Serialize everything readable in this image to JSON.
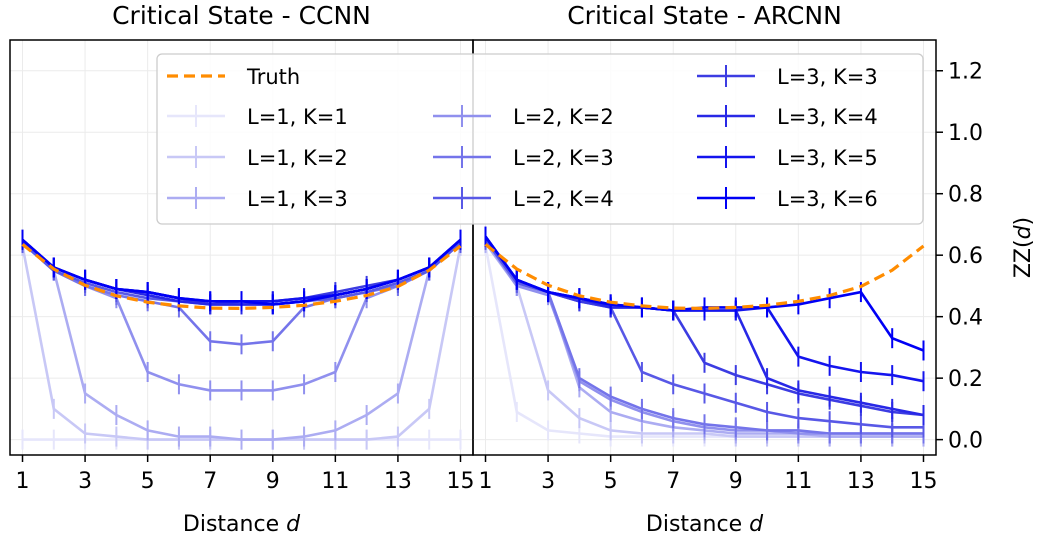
{
  "chart_data": [
    {
      "type": "line",
      "title": "Critical State - CCNN",
      "xlabel": "Distance d",
      "ylabel": "",
      "xlim": [
        0.6,
        15.4
      ],
      "ylim": [
        -0.05,
        1.3
      ],
      "x": [
        1,
        2,
        3,
        4,
        5,
        6,
        7,
        8,
        9,
        10,
        11,
        12,
        13,
        14,
        15
      ],
      "xticks": [
        "1",
        "3",
        "5",
        "7",
        "9",
        "11",
        "13",
        "15"
      ],
      "yticks": [],
      "grid": true,
      "legend_placement": "top",
      "series": [
        {
          "name": "Truth",
          "style": "dashed",
          "color": "#ff8c00",
          "values": [
            0.635,
            0.555,
            0.502,
            0.468,
            0.447,
            0.435,
            0.428,
            0.427,
            0.43,
            0.437,
            0.45,
            0.469,
            0.498,
            0.551,
            0.63
          ]
        },
        {
          "name": "L=1, K=1",
          "color": "#e6e6fb",
          "values": [
            0.0,
            0.0,
            0.0,
            0.0,
            0.0,
            0.0,
            0.0,
            0.0,
            0.0,
            0.0,
            0.0,
            0.0,
            0.0,
            0.0,
            0.0
          ]
        },
        {
          "name": "L=1, K=2",
          "color": "#c8c8f6",
          "values": [
            0.63,
            0.1,
            0.02,
            0.01,
            0.0,
            0.0,
            0.0,
            0.0,
            0.0,
            0.0,
            0.0,
            0.0,
            0.01,
            0.1,
            0.63
          ]
        },
        {
          "name": "L=1, K=3",
          "color": "#acacf2",
          "values": [
            0.64,
            0.55,
            0.15,
            0.08,
            0.03,
            0.01,
            0.01,
            0.0,
            0.0,
            0.01,
            0.03,
            0.08,
            0.15,
            0.55,
            0.64
          ]
        },
        {
          "name": "L=2, K=2",
          "color": "#9090ee",
          "values": [
            0.64,
            0.55,
            0.5,
            0.46,
            0.22,
            0.18,
            0.16,
            0.16,
            0.16,
            0.18,
            0.22,
            0.46,
            0.5,
            0.55,
            0.64
          ]
        },
        {
          "name": "L=2, K=3",
          "color": "#7474ea",
          "values": [
            0.64,
            0.55,
            0.5,
            0.47,
            0.45,
            0.43,
            0.32,
            0.31,
            0.32,
            0.43,
            0.46,
            0.48,
            0.5,
            0.55,
            0.64
          ]
        },
        {
          "name": "L=2, K=4",
          "color": "#5858e6",
          "values": [
            0.64,
            0.55,
            0.51,
            0.48,
            0.46,
            0.45,
            0.44,
            0.44,
            0.44,
            0.45,
            0.46,
            0.48,
            0.51,
            0.55,
            0.64
          ]
        },
        {
          "name": "L=3, K=3",
          "color": "#3c3ce2",
          "values": [
            0.65,
            0.56,
            0.52,
            0.49,
            0.48,
            0.46,
            0.44,
            0.45,
            0.45,
            0.46,
            0.48,
            0.5,
            0.52,
            0.56,
            0.65
          ]
        },
        {
          "name": "L=3, K=4",
          "color": "#2828e6",
          "values": [
            0.65,
            0.56,
            0.52,
            0.49,
            0.47,
            0.45,
            0.44,
            0.44,
            0.44,
            0.45,
            0.47,
            0.49,
            0.52,
            0.56,
            0.65
          ]
        },
        {
          "name": "L=3, K=5",
          "color": "#1414ee",
          "values": [
            0.65,
            0.56,
            0.52,
            0.49,
            0.48,
            0.46,
            0.45,
            0.45,
            0.45,
            0.46,
            0.47,
            0.49,
            0.52,
            0.56,
            0.65
          ]
        },
        {
          "name": "L=3, K=6",
          "color": "#0000f5",
          "values": [
            0.65,
            0.56,
            0.52,
            0.49,
            0.48,
            0.46,
            0.45,
            0.45,
            0.44,
            0.45,
            0.47,
            0.49,
            0.52,
            0.56,
            0.65
          ]
        }
      ]
    },
    {
      "type": "line",
      "title": "Critical State - ARCNN",
      "xlabel": "Distance d",
      "ylabel": "ZZ(d)",
      "xlim": [
        0.6,
        15.4
      ],
      "ylim": [
        -0.05,
        1.3
      ],
      "x": [
        1,
        2,
        3,
        4,
        5,
        6,
        7,
        8,
        9,
        10,
        11,
        12,
        13,
        14,
        15
      ],
      "xticks": [
        "1",
        "3",
        "5",
        "7",
        "9",
        "11",
        "13",
        "15"
      ],
      "yticks": [
        "0.0",
        "0.2",
        "0.4",
        "0.6",
        "0.8",
        "1.0",
        "1.2"
      ],
      "grid": true,
      "series": [
        {
          "name": "Truth",
          "style": "dashed",
          "color": "#ff8c00",
          "values": [
            0.635,
            0.555,
            0.502,
            0.468,
            0.447,
            0.435,
            0.428,
            0.427,
            0.43,
            0.437,
            0.45,
            0.469,
            0.498,
            0.551,
            0.63
          ]
        },
        {
          "name": "L=1, K=1",
          "color": "#e6e6fb",
          "values": [
            0.63,
            0.09,
            0.03,
            0.02,
            0.01,
            0.01,
            0.01,
            0.01,
            0.01,
            0.01,
            0.01,
            0.01,
            0.01,
            0.01,
            0.01
          ]
        },
        {
          "name": "L=1, K=2",
          "color": "#c8c8f6",
          "values": [
            0.64,
            0.5,
            0.16,
            0.07,
            0.03,
            0.02,
            0.02,
            0.02,
            0.01,
            0.01,
            0.01,
            0.01,
            0.01,
            0.01,
            0.01
          ]
        },
        {
          "name": "L=1, K=3",
          "color": "#acacf2",
          "values": [
            0.64,
            0.5,
            0.48,
            0.17,
            0.09,
            0.06,
            0.04,
            0.03,
            0.02,
            0.02,
            0.02,
            0.01,
            0.01,
            0.01,
            0.01
          ]
        },
        {
          "name": "L=2, K=2",
          "color": "#9090ee",
          "values": [
            0.65,
            0.5,
            0.47,
            0.19,
            0.13,
            0.09,
            0.06,
            0.04,
            0.03,
            0.03,
            0.02,
            0.02,
            0.02,
            0.02,
            0.02
          ]
        },
        {
          "name": "L=2, K=3",
          "color": "#7474ea",
          "values": [
            0.65,
            0.51,
            0.48,
            0.2,
            0.14,
            0.1,
            0.07,
            0.05,
            0.04,
            0.03,
            0.03,
            0.02,
            0.02,
            0.02,
            0.02
          ]
        },
        {
          "name": "L=2, K=4",
          "color": "#5858e6",
          "values": [
            0.65,
            0.51,
            0.48,
            0.45,
            0.43,
            0.22,
            0.18,
            0.15,
            0.12,
            0.09,
            0.07,
            0.06,
            0.05,
            0.04,
            0.04
          ]
        },
        {
          "name": "L=3, K=3",
          "color": "#3c3ce2",
          "values": [
            0.66,
            0.52,
            0.48,
            0.45,
            0.43,
            0.43,
            0.42,
            0.25,
            0.21,
            0.18,
            0.15,
            0.13,
            0.11,
            0.09,
            0.08
          ]
        },
        {
          "name": "L=3, K=4",
          "color": "#2828e6",
          "values": [
            0.66,
            0.52,
            0.48,
            0.46,
            0.43,
            0.43,
            0.42,
            0.42,
            0.42,
            0.2,
            0.16,
            0.14,
            0.12,
            0.1,
            0.08
          ]
        },
        {
          "name": "L=3, K=5",
          "color": "#1414ee",
          "values": [
            0.66,
            0.52,
            0.48,
            0.46,
            0.44,
            0.43,
            0.42,
            0.42,
            0.42,
            0.43,
            0.27,
            0.24,
            0.22,
            0.21,
            0.19
          ]
        },
        {
          "name": "L=3, K=6",
          "color": "#0000f5",
          "values": [
            0.66,
            0.52,
            0.48,
            0.46,
            0.44,
            0.43,
            0.42,
            0.43,
            0.43,
            0.43,
            0.44,
            0.46,
            0.48,
            0.33,
            0.29
          ]
        }
      ]
    }
  ]
}
